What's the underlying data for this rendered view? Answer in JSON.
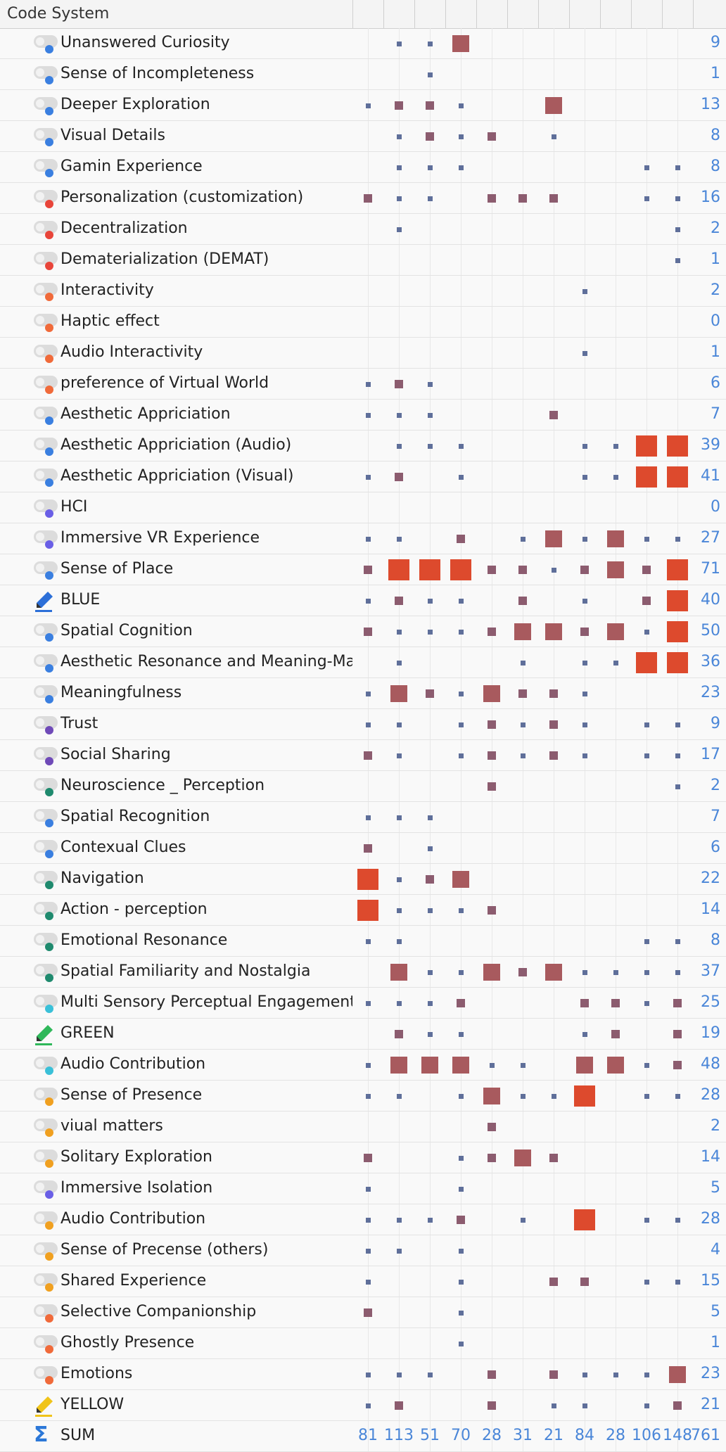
{
  "header": {
    "title": "Code System"
  },
  "colors": {
    "low": "#5f6f9a",
    "mid": "#8c5c6f",
    "high": "#a85a5e",
    "max": "#dd4a2d",
    "total": "#4a86d8"
  },
  "rows": [
    {
      "label": "Unanswered Curiosity",
      "icon": "toggle",
      "dot": "#3a7fe0",
      "total": "9",
      "cells": [
        0,
        1,
        1,
        3,
        0,
        0,
        0,
        0,
        0,
        0,
        0
      ]
    },
    {
      "label": "Sense of Incompleteness",
      "icon": "toggle",
      "dot": "#3a7fe0",
      "total": "1",
      "cells": [
        0,
        0,
        1,
        0,
        0,
        0,
        0,
        0,
        0,
        0,
        0
      ]
    },
    {
      "label": "Deeper Exploration",
      "icon": "toggle",
      "dot": "#3a7fe0",
      "total": "13",
      "cells": [
        1,
        2,
        2,
        1,
        0,
        0,
        3,
        0,
        0,
        0,
        0
      ]
    },
    {
      "label": "Visual Details",
      "icon": "toggle",
      "dot": "#3a7fe0",
      "total": "8",
      "cells": [
        0,
        1,
        2,
        1,
        2,
        0,
        1,
        0,
        0,
        0,
        0
      ]
    },
    {
      "label": "Gamin Experience",
      "icon": "toggle",
      "dot": "#3a7fe0",
      "total": "8",
      "cells": [
        0,
        1,
        1,
        1,
        0,
        0,
        0,
        0,
        0,
        1,
        1
      ]
    },
    {
      "label": "Personalization (customization)",
      "icon": "toggle",
      "dot": "#e8453a",
      "total": "16",
      "cells": [
        2,
        1,
        1,
        0,
        2,
        2,
        2,
        0,
        0,
        1,
        1
      ]
    },
    {
      "label": "Decentralization",
      "icon": "toggle",
      "dot": "#e8453a",
      "total": "2",
      "cells": [
        0,
        1,
        0,
        0,
        0,
        0,
        0,
        0,
        0,
        0,
        1
      ]
    },
    {
      "label": "Dematerialization (DEMAT)",
      "icon": "toggle",
      "dot": "#e8453a",
      "total": "1",
      "cells": [
        0,
        0,
        0,
        0,
        0,
        0,
        0,
        0,
        0,
        0,
        1
      ]
    },
    {
      "label": "Interactivity",
      "icon": "toggle",
      "dot": "#f06a3a",
      "total": "2",
      "cells": [
        0,
        0,
        0,
        0,
        0,
        0,
        0,
        1,
        0,
        0,
        0
      ]
    },
    {
      "label": "Haptic effect",
      "icon": "toggle",
      "dot": "#f06a3a",
      "total": "0",
      "cells": [
        0,
        0,
        0,
        0,
        0,
        0,
        0,
        0,
        0,
        0,
        0
      ]
    },
    {
      "label": "Audio Interactivity",
      "icon": "toggle",
      "dot": "#f06a3a",
      "total": "1",
      "cells": [
        0,
        0,
        0,
        0,
        0,
        0,
        0,
        1,
        0,
        0,
        0
      ]
    },
    {
      "label": " preference of Virtual World",
      "icon": "toggle",
      "dot": "#f06a3a",
      "total": "6",
      "cells": [
        1,
        2,
        1,
        0,
        0,
        0,
        0,
        0,
        0,
        0,
        0
      ]
    },
    {
      "label": "Aesthetic Appriciation",
      "icon": "toggle",
      "dot": "#3a7fe0",
      "total": "7",
      "cells": [
        1,
        1,
        1,
        0,
        0,
        0,
        2,
        0,
        0,
        0,
        0
      ]
    },
    {
      "label": "Aesthetic Appriciation (Audio)",
      "icon": "toggle",
      "dot": "#3a7fe0",
      "total": "39",
      "cells": [
        0,
        1,
        1,
        1,
        0,
        0,
        0,
        1,
        1,
        4,
        4
      ]
    },
    {
      "label": "Aesthetic Appriciation (Visual)",
      "icon": "toggle",
      "dot": "#3a7fe0",
      "total": "41",
      "cells": [
        1,
        2,
        0,
        1,
        0,
        0,
        0,
        1,
        1,
        4,
        4
      ]
    },
    {
      "label": "HCI",
      "icon": "toggle",
      "dot": "#6a5fe6",
      "total": "0",
      "cells": [
        0,
        0,
        0,
        0,
        0,
        0,
        0,
        0,
        0,
        0,
        0
      ]
    },
    {
      "label": "Immersive VR Experience",
      "icon": "toggle",
      "dot": "#6a5fe6",
      "total": "27",
      "cells": [
        1,
        1,
        0,
        2,
        0,
        1,
        3,
        1,
        3,
        1,
        1
      ]
    },
    {
      "label": "Sense of Place",
      "icon": "toggle",
      "dot": "#3a7fe0",
      "total": "71",
      "cells": [
        2,
        4,
        4,
        4,
        2,
        2,
        1,
        2,
        3,
        2,
        4
      ]
    },
    {
      "label": "BLUE",
      "icon": "pen-blue",
      "dot": "",
      "total": "40",
      "cells": [
        1,
        2,
        1,
        1,
        0,
        2,
        0,
        1,
        0,
        2,
        4
      ]
    },
    {
      "label": "Spatial Cognition",
      "icon": "toggle",
      "dot": "#3a7fe0",
      "total": "50",
      "cells": [
        2,
        1,
        1,
        1,
        2,
        3,
        3,
        2,
        3,
        1,
        4
      ]
    },
    {
      "label": "Aesthetic Resonance and Meaning-Making",
      "icon": "toggle",
      "dot": "#3a7fe0",
      "total": "36",
      "cells": [
        0,
        1,
        0,
        0,
        0,
        1,
        0,
        1,
        1,
        4,
        4
      ]
    },
    {
      "label": "Meaningfulness",
      "icon": "toggle",
      "dot": "#3a7fe0",
      "total": "23",
      "cells": [
        1,
        3,
        2,
        1,
        3,
        2,
        2,
        1,
        0,
        0,
        0
      ]
    },
    {
      "label": "Trust",
      "icon": "toggle",
      "dot": "#6f4ab8",
      "total": "9",
      "cells": [
        1,
        1,
        0,
        1,
        2,
        1,
        2,
        1,
        0,
        1,
        1
      ]
    },
    {
      "label": "Social Sharing",
      "icon": "toggle",
      "dot": "#6f4ab8",
      "total": "17",
      "cells": [
        2,
        1,
        0,
        1,
        2,
        1,
        2,
        1,
        0,
        1,
        1
      ]
    },
    {
      "label": "Neuroscience _ Perception",
      "icon": "toggle",
      "dot": "#1f8a6e",
      "total": "2",
      "cells": [
        0,
        0,
        0,
        0,
        2,
        0,
        0,
        0,
        0,
        0,
        1
      ]
    },
    {
      "label": "Spatial Recognition",
      "icon": "toggle",
      "dot": "#3a7fe0",
      "total": "7",
      "cells": [
        1,
        1,
        1,
        0,
        0,
        0,
        0,
        0,
        0,
        0,
        0
      ]
    },
    {
      "label": "Contexual Clues",
      "icon": "toggle",
      "dot": "#3a7fe0",
      "total": "6",
      "cells": [
        2,
        0,
        1,
        0,
        0,
        0,
        0,
        0,
        0,
        0,
        0
      ]
    },
    {
      "label": "Navigation",
      "icon": "toggle",
      "dot": "#1f8a6e",
      "total": "22",
      "cells": [
        4,
        1,
        2,
        3,
        0,
        0,
        0,
        0,
        0,
        0,
        0
      ]
    },
    {
      "label": "Action - perception",
      "icon": "toggle",
      "dot": "#1f8a6e",
      "total": "14",
      "cells": [
        4,
        1,
        1,
        1,
        2,
        0,
        0,
        0,
        0,
        0,
        0
      ]
    },
    {
      "label": "Emotional Resonance",
      "icon": "toggle",
      "dot": "#1f8a6e",
      "total": "8",
      "cells": [
        1,
        1,
        0,
        0,
        0,
        0,
        0,
        0,
        0,
        1,
        1
      ]
    },
    {
      "label": "Spatial Familiarity and Nostalgia",
      "icon": "toggle",
      "dot": "#1f8a6e",
      "total": "37",
      "cells": [
        0,
        3,
        1,
        1,
        3,
        2,
        3,
        1,
        1,
        1,
        1
      ]
    },
    {
      "label": "Multi Sensory Perceptual Engagement",
      "icon": "toggle",
      "dot": "#3ac0d8",
      "total": "25",
      "cells": [
        1,
        1,
        1,
        2,
        0,
        0,
        0,
        2,
        2,
        1,
        2
      ]
    },
    {
      "label": "GREEN",
      "icon": "pen-green",
      "dot": "",
      "total": "19",
      "cells": [
        0,
        2,
        1,
        1,
        0,
        0,
        0,
        1,
        2,
        0,
        2
      ]
    },
    {
      "label": "Audio Contribution",
      "icon": "toggle",
      "dot": "#3ac0d8",
      "total": "48",
      "cells": [
        1,
        3,
        3,
        3,
        1,
        1,
        0,
        3,
        3,
        1,
        2
      ]
    },
    {
      "label": "Sense of Presence",
      "icon": "toggle",
      "dot": "#f0a020",
      "total": "28",
      "cells": [
        1,
        1,
        0,
        1,
        3,
        1,
        1,
        4,
        0,
        1,
        1
      ]
    },
    {
      "label": "viual matters",
      "icon": "toggle",
      "dot": "#f0a020",
      "total": "2",
      "cells": [
        0,
        0,
        0,
        0,
        2,
        0,
        0,
        0,
        0,
        0,
        0
      ]
    },
    {
      "label": " Solitary Exploration",
      "icon": "toggle",
      "dot": "#f0a020",
      "total": "14",
      "cells": [
        2,
        0,
        0,
        1,
        2,
        3,
        2,
        0,
        0,
        0,
        0
      ]
    },
    {
      "label": "Immersive Isolation",
      "icon": "toggle",
      "dot": "#6a5fe6",
      "total": "5",
      "cells": [
        1,
        0,
        0,
        1,
        0,
        0,
        0,
        0,
        0,
        0,
        0
      ]
    },
    {
      "label": "Audio Contribution",
      "icon": "toggle",
      "dot": "#f0a020",
      "total": "28",
      "cells": [
        1,
        1,
        1,
        2,
        0,
        1,
        0,
        4,
        0,
        1,
        1
      ]
    },
    {
      "label": "Sense of Precense (others)",
      "icon": "toggle",
      "dot": "#f0a020",
      "total": "4",
      "cells": [
        1,
        1,
        0,
        1,
        0,
        0,
        0,
        0,
        0,
        0,
        0
      ]
    },
    {
      "label": "Shared Experience",
      "icon": "toggle",
      "dot": "#f0a020",
      "total": "15",
      "cells": [
        1,
        0,
        0,
        1,
        0,
        0,
        2,
        2,
        0,
        1,
        1
      ]
    },
    {
      "label": "Selective Companionship",
      "icon": "toggle",
      "dot": "#f06a3a",
      "total": "5",
      "cells": [
        2,
        0,
        0,
        1,
        0,
        0,
        0,
        0,
        0,
        0,
        0
      ]
    },
    {
      "label": "Ghostly Presence",
      "icon": "toggle",
      "dot": "#f06a3a",
      "total": "1",
      "cells": [
        0,
        0,
        0,
        1,
        0,
        0,
        0,
        0,
        0,
        0,
        0
      ]
    },
    {
      "label": "Emotions",
      "icon": "toggle",
      "dot": "#f06a3a",
      "total": "23",
      "cells": [
        1,
        1,
        1,
        0,
        2,
        0,
        2,
        1,
        1,
        1,
        3
      ]
    },
    {
      "label": "YELLOW",
      "icon": "pen-yellow",
      "dot": "",
      "total": "21",
      "cells": [
        1,
        2,
        0,
        0,
        2,
        0,
        1,
        1,
        0,
        1,
        2
      ]
    }
  ],
  "sum_row": {
    "label": "SUM",
    "values": [
      "81",
      "113",
      "51",
      "70",
      "28",
      "31",
      "21",
      "84",
      "28",
      "106",
      "148"
    ],
    "total": "761"
  }
}
